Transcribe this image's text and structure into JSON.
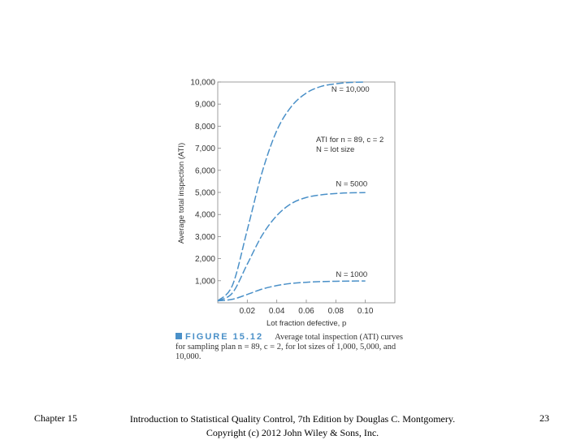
{
  "chart_data": {
    "type": "line",
    "xlabel": "Lot fraction defective, p",
    "ylabel": "Average total inspection (ATI)",
    "xlim": [
      0,
      0.12
    ],
    "ylim": [
      0,
      10000
    ],
    "x_ticks": [
      "0.02",
      "0.04",
      "0.06",
      "0.08",
      "0.10"
    ],
    "y_ticks": [
      "1,000",
      "2,000",
      "3,000",
      "4,000",
      "5,000",
      "6,000",
      "7,000",
      "8,000",
      "9,000",
      "10,000"
    ],
    "annotation_lines": [
      "ATI for n = 89, c = 2",
      "N = lot size"
    ],
    "x": [
      0,
      0.01,
      0.02,
      0.03,
      0.04,
      0.05,
      0.06,
      0.07,
      0.08,
      0.09,
      0.1
    ],
    "series": [
      {
        "name": "N = 10,000",
        "values": [
          89,
          800,
          3300,
          5900,
          7800,
          8900,
          9500,
          9800,
          9920,
          9980,
          10000
        ]
      },
      {
        "name": "N = 5000",
        "values": [
          89,
          450,
          1750,
          3050,
          3950,
          4500,
          4770,
          4890,
          4950,
          4980,
          4990
        ]
      },
      {
        "name": "N = 1000",
        "values": [
          89,
          160,
          380,
          620,
          780,
          880,
          930,
          960,
          975,
          985,
          990
        ]
      }
    ],
    "grid": false,
    "legend": "none",
    "line_style": "dashed",
    "line_color": "#4a90c8"
  },
  "caption": {
    "figure_label": "FIGURE 15.12",
    "text": "Average total inspection (ATI) curves for sampling plan n = 89, c = 2, for lot sizes of 1,000, 5,000, and 10,000."
  },
  "footer": {
    "chapter": "Chapter 15",
    "book_line1": "Introduction to Statistical Quality Control, 7th Edition by Douglas C. Montgomery.",
    "book_line2": "Copyright (c) 2012 John Wiley & Sons, Inc.",
    "page_number": "23"
  }
}
